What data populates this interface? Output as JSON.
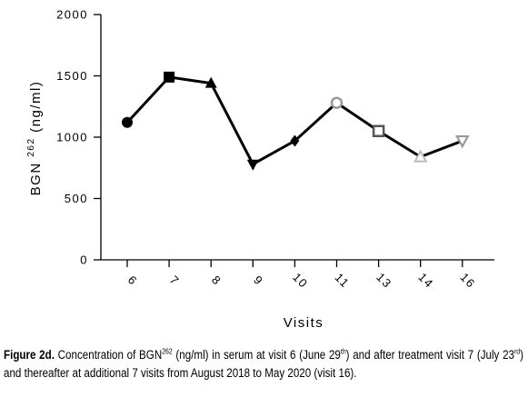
{
  "chart_data": {
    "type": "line",
    "title": "",
    "xlabel": "Visits",
    "ylabel": "ng/ml",
    "ylabel_prefix": "BGN",
    "ylabel_superscript": "262",
    "ylim": [
      0,
      2000
    ],
    "yticks": [
      "0",
      "500",
      "1000",
      "1500",
      "2000"
    ],
    "categories": [
      "6",
      "7",
      "8",
      "9",
      "10",
      "11",
      "13",
      "14",
      "16"
    ],
    "series": [
      {
        "values": [
          1120,
          1490,
          1440,
          780,
          970,
          1280,
          1050,
          840,
          970
        ],
        "markers": [
          "circle-filled",
          "square-filled",
          "triangle-up-filled",
          "triangle-down-filled",
          "diamond-filled",
          "circle-open-gray",
          "square-open-gray",
          "triangle-up-open-gray",
          "triangle-down-open-gray"
        ]
      }
    ],
    "grid": false,
    "line_color": "#000000",
    "marker_gray": "#999999"
  },
  "caption": {
    "label": "Figure 2d.",
    "t1": "Concentration of BGN",
    "s1": "262",
    "t2": "(ng/ml) in serum at visit 6 (June 29",
    "s2": "th",
    "t3": ") and after treatment visit 7 (July 23",
    "s3": "rd",
    "t4": ") and thereafter at additional 7 visits from August 2018 to May 2020 (visit 16)."
  }
}
